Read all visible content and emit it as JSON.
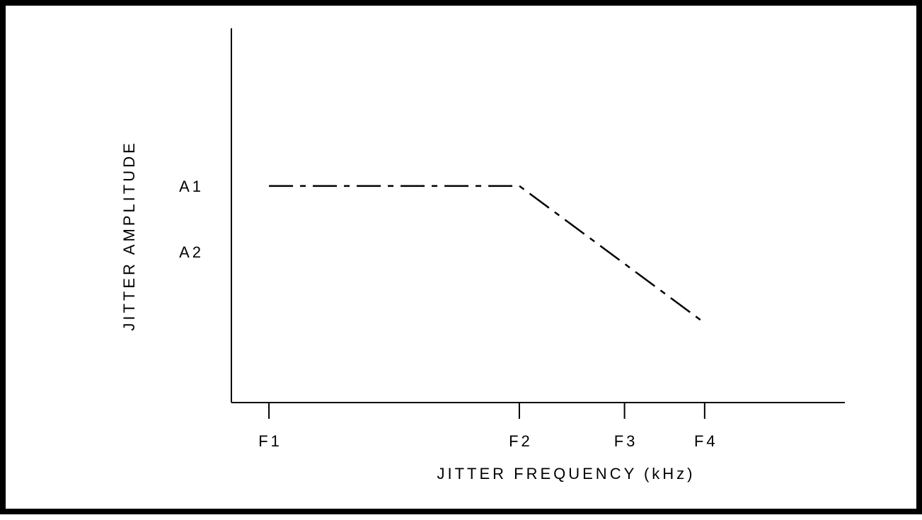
{
  "chart_data": {
    "type": "line",
    "title": "",
    "xlabel": "JITTER FREQUENCY  (kHz)",
    "ylabel": "JITTER AMPLITUDE",
    "x_ticks": [
      {
        "label": "F1",
        "value": 0
      },
      {
        "label": "F2",
        "value": 1
      },
      {
        "label": "F3",
        "value": 1.42
      },
      {
        "label": "F4",
        "value": 1.74
      }
    ],
    "y_ticks": [
      {
        "label": "A1",
        "value": 1
      },
      {
        "label": "A2",
        "value": 0.52
      }
    ],
    "series": [
      {
        "points": [
          {
            "x": 0,
            "y": 1
          },
          {
            "x": 1,
            "y": 1
          },
          {
            "x": 1.74,
            "y": 0
          }
        ],
        "line_style": "dash-dot",
        "color": "#000000"
      }
    ],
    "xlim": [
      -0.15,
      2.3
    ],
    "ylim": [
      -0.58,
      2.15
    ],
    "grid": false,
    "legend": "none"
  }
}
